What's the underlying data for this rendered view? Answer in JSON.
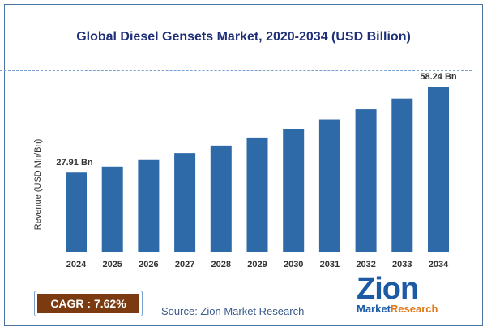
{
  "chart_data": {
    "type": "bar",
    "title": "Global Diesel Gensets Market, 2020-2034 (USD Billion)",
    "ylabel": "Revenue (USD Mn/Bn)",
    "xlabel": "",
    "categories": [
      "2024",
      "2025",
      "2026",
      "2027",
      "2028",
      "2029",
      "2030",
      "2031",
      "2032",
      "2033",
      "2034"
    ],
    "values": [
      27.91,
      30.04,
      32.33,
      34.79,
      37.44,
      40.29,
      43.36,
      46.67,
      50.22,
      54.05,
      58.24
    ],
    "data_labels": {
      "0": "27.91 Bn",
      "10": "58.24 Bn"
    },
    "ylim": [
      0,
      58.24
    ],
    "grid": false,
    "bar_color": "#2e6aa8"
  },
  "cagr_label": "CAGR : 7.62%",
  "source": "Source: Zion Market Research",
  "logo": {
    "top": "Zion",
    "bottom_left": "Market",
    "bottom_right": "Research"
  }
}
